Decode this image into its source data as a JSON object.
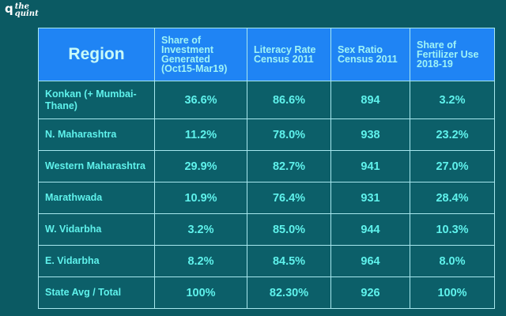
{
  "brand": {
    "mark": "q",
    "line1": "the",
    "line2": "quint"
  },
  "chart_data": {
    "type": "table",
    "columns": [
      "Region",
      "Share of Investment Generated (Oct15-Mar19)",
      "Literacy Rate Census 2011",
      "Sex Ratio Census 2011",
      "Share of Fertilizer Use 2018-19"
    ],
    "rows": [
      [
        "Konkan (+ Mumbai-Thane)",
        "36.6%",
        "86.6%",
        "894",
        "3.2%"
      ],
      [
        "N. Maharashtra",
        "11.2%",
        "78.0%",
        "938",
        "23.2%"
      ],
      [
        "Western Maharashtra",
        "29.9%",
        "82.7%",
        "941",
        "27.0%"
      ],
      [
        "Marathwada",
        "10.9%",
        "76.4%",
        "931",
        "28.4%"
      ],
      [
        "W. Vidarbha",
        "3.2%",
        "85.0%",
        "944",
        "10.3%"
      ],
      [
        "E. Vidarbha",
        "8.2%",
        "84.5%",
        "964",
        "8.0%"
      ],
      [
        "State Avg / Total",
        "100%",
        "82.30%",
        "926",
        "100%"
      ]
    ],
    "colors": {
      "background": "#0b5a63",
      "header_fill": "#1f84f4",
      "header_text": "#9ff3f6",
      "cell_text": "#5ff2ec",
      "border": "#a7e7ee"
    }
  }
}
